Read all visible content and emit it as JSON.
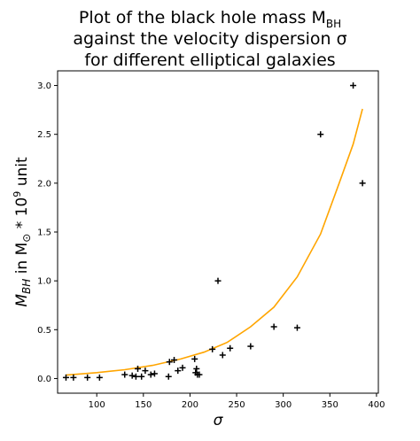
{
  "chart_data": {
    "type": "scatter",
    "title_lines": [
      "Plot of the black hole mass M",
      "against the velocity dispersion σ",
      "for different elliptical galaxies"
    ],
    "title_subscript": "BH",
    "xlabel": "σ",
    "ylabel": {
      "prefix": "M",
      "prefix_sub": "BH",
      "middle": " in M",
      "middle_sub": "⊙",
      "after": " * 10",
      "exponent": "9",
      "suffix": " unit"
    },
    "xlim": [
      58,
      402
    ],
    "ylim": [
      -0.15,
      3.15
    ],
    "xticks": [
      100,
      150,
      200,
      250,
      300,
      350,
      400
    ],
    "yticks": [
      0.0,
      0.5,
      1.0,
      1.5,
      2.0,
      2.5,
      3.0
    ],
    "xtick_labels": [
      "100",
      "150",
      "200",
      "250",
      "300",
      "350",
      "400"
    ],
    "ytick_labels": [
      "0.0",
      "0.5",
      "1.0",
      "1.5",
      "2.0",
      "2.5",
      "3.0"
    ],
    "grid": false,
    "series": [
      {
        "kind": "scatter",
        "marker": "+",
        "color": "#000000",
        "points": [
          [
            67,
            0.01
          ],
          [
            75,
            0.01
          ],
          [
            90,
            0.01
          ],
          [
            103,
            0.01
          ],
          [
            130,
            0.04
          ],
          [
            138,
            0.03
          ],
          [
            142,
            0.02
          ],
          [
            144,
            0.1
          ],
          [
            148,
            0.02
          ],
          [
            152,
            0.08
          ],
          [
            158,
            0.04
          ],
          [
            162,
            0.05
          ],
          [
            177,
            0.02
          ],
          [
            178,
            0.17
          ],
          [
            183,
            0.19
          ],
          [
            187,
            0.08
          ],
          [
            192,
            0.11
          ],
          [
            205,
            0.2
          ],
          [
            206,
            0.06
          ],
          [
            207,
            0.1
          ],
          [
            208,
            0.04
          ],
          [
            210,
            0.04
          ],
          [
            224,
            0.3
          ],
          [
            230,
            1.0
          ],
          [
            235,
            0.24
          ],
          [
            243,
            0.31
          ],
          [
            265,
            0.33
          ],
          [
            290,
            0.53
          ],
          [
            315,
            0.52
          ],
          [
            340,
            2.5
          ],
          [
            375,
            3.0
          ],
          [
            385,
            2.0
          ]
        ]
      },
      {
        "kind": "line",
        "color": "#ffa500",
        "points": [
          [
            67,
            0.035
          ],
          [
            100,
            0.06
          ],
          [
            130,
            0.09
          ],
          [
            160,
            0.135
          ],
          [
            190,
            0.2
          ],
          [
            215,
            0.27
          ],
          [
            240,
            0.37
          ],
          [
            265,
            0.53
          ],
          [
            290,
            0.73
          ],
          [
            315,
            1.04
          ],
          [
            340,
            1.48
          ],
          [
            360,
            2.0
          ],
          [
            375,
            2.4
          ],
          [
            385,
            2.76
          ]
        ]
      }
    ]
  }
}
